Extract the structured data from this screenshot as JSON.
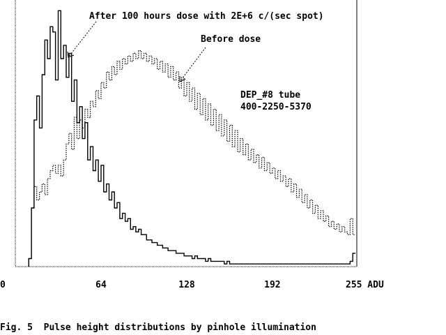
{
  "caption": "Fig. 5  Pulse height distributions by pinhole illumination",
  "chart_data": {
    "type": "line",
    "title": "",
    "xlabel": "",
    "ylabel": "",
    "xlim": [
      0,
      255
    ],
    "ylim": [
      0,
      100
    ],
    "x_ticks": [
      "0",
      "64",
      "128",
      "192",
      "255 ADU"
    ],
    "x_tick_values": [
      0,
      64,
      128,
      192,
      255
    ],
    "annotations": [
      {
        "text": "After 100 hours dose with 2E+6 c/(sec spot)",
        "target_series": "after"
      },
      {
        "text": "Before dose",
        "target_series": "before"
      }
    ],
    "label_lines": [
      "DEP_#8 tube",
      "400-2250-5370"
    ],
    "grid": false,
    "series": [
      {
        "key": "after",
        "style": "solid",
        "x_step": 2,
        "x_start": 10,
        "values": [
          3,
          22,
          55,
          64,
          52,
          72,
          85,
          78,
          90,
          88,
          70,
          96,
          78,
          83,
          71,
          80,
          62,
          70,
          54,
          60,
          48,
          54,
          40,
          45,
          36,
          40,
          32,
          38,
          28,
          31,
          25,
          28,
          22,
          24,
          18,
          20,
          17,
          18,
          14,
          15,
          13,
          14,
          12,
          12,
          10,
          10,
          9,
          9,
          8,
          8,
          7,
          7,
          6,
          6,
          6,
          5,
          5,
          5,
          4,
          4,
          4,
          3,
          4,
          3,
          3,
          3,
          2,
          3,
          2,
          2,
          2,
          2,
          2,
          1,
          2,
          1,
          1,
          1,
          1,
          1,
          1,
          1,
          1,
          1,
          1,
          1,
          1,
          1,
          1,
          1,
          1,
          1,
          1,
          1,
          1,
          1,
          1,
          1,
          1,
          1,
          1,
          1,
          1,
          1,
          1,
          1,
          1,
          1,
          1,
          1,
          1,
          1,
          1,
          1,
          1,
          1,
          1,
          1,
          1,
          1,
          2,
          5
        ]
      },
      {
        "key": "before",
        "style": "dotted",
        "x_step": 2,
        "x_start": 10,
        "values": [
          3,
          22,
          30,
          25,
          28,
          31,
          27,
          33,
          36,
          38,
          35,
          38,
          34,
          40,
          46,
          50,
          44,
          56,
          48,
          55,
          52,
          59,
          56,
          62,
          60,
          66,
          63,
          69,
          67,
          73,
          70,
          75,
          72,
          77,
          74,
          78,
          76,
          79,
          77,
          80,
          78,
          81,
          78,
          80,
          77,
          79,
          76,
          78,
          74,
          77,
          73,
          76,
          71,
          75,
          70,
          73,
          67,
          71,
          64,
          69,
          62,
          67,
          59,
          65,
          57,
          63,
          55,
          61,
          53,
          59,
          51,
          57,
          49,
          55,
          47,
          53,
          45,
          51,
          43,
          48,
          42,
          46,
          40,
          44,
          39,
          42,
          37,
          41,
          36,
          39,
          35,
          37,
          33,
          36,
          32,
          34,
          30,
          33,
          28,
          31,
          26,
          29,
          24,
          27,
          22,
          25,
          20,
          23,
          18,
          21,
          17,
          19,
          15,
          17,
          14,
          16,
          13,
          15,
          13,
          12,
          18,
          12
        ]
      }
    ]
  }
}
